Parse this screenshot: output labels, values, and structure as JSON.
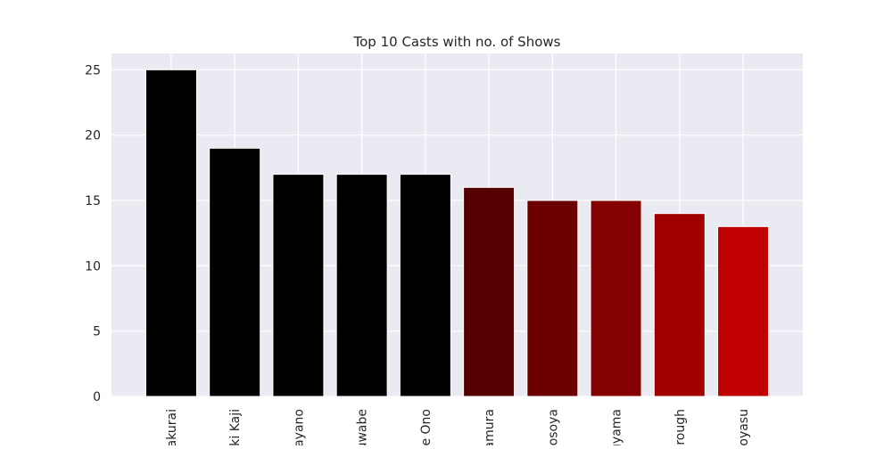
{
  "chart_data": {
    "type": "bar",
    "title": "Top 10 Casts with no. of Shows",
    "xlabel": "",
    "ylabel": "",
    "categories": [
      "akurai",
      "ki Kaji",
      "ayano",
      "uwabe",
      "e Ono",
      "amura",
      "osoya",
      "uyama",
      "orough",
      "oyasu"
    ],
    "values": [
      25,
      19,
      17,
      17,
      17,
      16,
      15,
      15,
      14,
      13
    ],
    "ylim": [
      0,
      26.25
    ],
    "yticks": [
      0,
      5,
      10,
      15,
      20,
      25
    ],
    "grid": true,
    "colors": [
      "#000000",
      "#000000",
      "#000000",
      "#000000",
      "#000000",
      "#550000",
      "#6c0000",
      "#850000",
      "#a20000",
      "#c00000"
    ],
    "background": "#eaeaf2"
  }
}
